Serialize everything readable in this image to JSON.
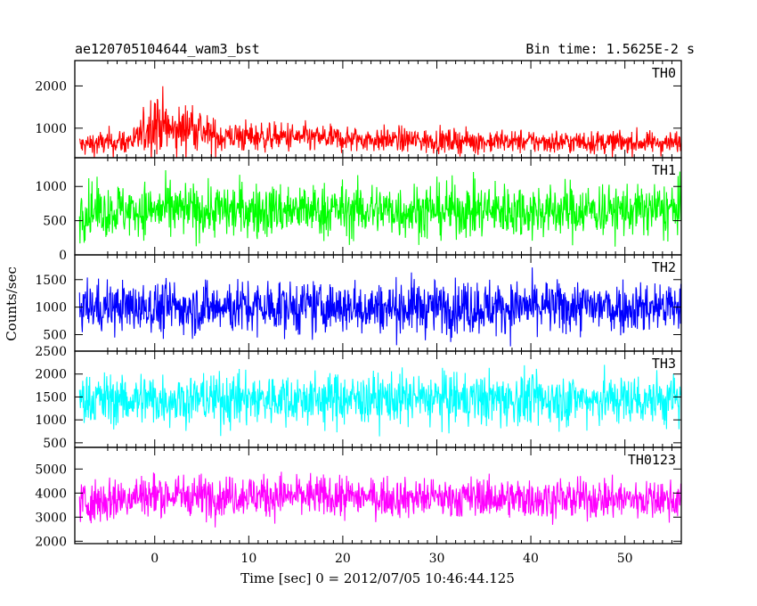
{
  "header": {
    "title": "ae120705104644_wam3_bst",
    "bin_time": "Bin time: 1.5625E-2 s"
  },
  "axes": {
    "xlabel": "Time [sec] 0 = 2012/07/05 10:46:44.125",
    "ylabel": "Counts/sec"
  },
  "chart_data": {
    "type": "line",
    "x_range": [
      -8.5,
      56
    ],
    "x_data_range": [
      -8,
      56
    ],
    "xticks": [
      0,
      10,
      20,
      30,
      40,
      50
    ],
    "xtick_labels": [
      "0",
      "10",
      "20",
      "30",
      "40",
      "50"
    ],
    "panels": [
      {
        "name": "TH0",
        "color": "#ff0000",
        "ylim": [
          300,
          2600
        ],
        "yticks": [
          1000,
          2000
        ],
        "ytick_labels": [
          "1000",
          "2000"
        ],
        "envelope": [
          {
            "t": -8,
            "base": 600,
            "amp": 300
          },
          {
            "t": -2,
            "base": 700,
            "amp": 400
          },
          {
            "t": 0,
            "base": 1200,
            "amp": 900
          },
          {
            "t": 2,
            "base": 900,
            "amp": 700
          },
          {
            "t": 4,
            "base": 1100,
            "amp": 700
          },
          {
            "t": 6,
            "base": 800,
            "amp": 500
          },
          {
            "t": 10,
            "base": 800,
            "amp": 400
          },
          {
            "t": 20,
            "base": 750,
            "amp": 350
          },
          {
            "t": 30,
            "base": 700,
            "amp": 330
          },
          {
            "t": 56,
            "base": 650,
            "amp": 300
          }
        ]
      },
      {
        "name": "TH1",
        "color": "#00ff00",
        "ylim": [
          0,
          1420
        ],
        "yticks": [
          0,
          500,
          1000
        ],
        "ytick_labels": [
          "0",
          "500",
          "1000"
        ],
        "envelope": [
          {
            "t": -8,
            "base": 650,
            "amp": 450
          },
          {
            "t": 56,
            "base": 650,
            "amp": 450
          }
        ]
      },
      {
        "name": "TH2",
        "color": "#0000ff",
        "ylim": [
          200,
          1950
        ],
        "yticks": [
          500,
          1000,
          1500
        ],
        "ytick_labels": [
          "500",
          "1000",
          "1500"
        ],
        "envelope": [
          {
            "t": -8,
            "base": 1000,
            "amp": 550
          },
          {
            "t": 56,
            "base": 1000,
            "amp": 550
          }
        ]
      },
      {
        "name": "TH3",
        "color": "#00ffff",
        "ylim": [
          400,
          2500
        ],
        "yticks": [
          500,
          1000,
          1500,
          2000,
          2500
        ],
        "ytick_labels": [
          "500",
          "1000",
          "1500",
          "2000",
          "2500"
        ],
        "envelope": [
          {
            "t": -8,
            "base": 1450,
            "amp": 650
          },
          {
            "t": 56,
            "base": 1450,
            "amp": 650
          }
        ]
      },
      {
        "name": "TH0123",
        "color": "#ff00ff",
        "ylim": [
          1900,
          5900
        ],
        "yticks": [
          2000,
          3000,
          4000,
          5000
        ],
        "ytick_labels": [
          "2000",
          "3000",
          "4000",
          "5000"
        ],
        "envelope": [
          {
            "t": -8,
            "base": 3600,
            "amp": 1000
          },
          {
            "t": -1,
            "base": 3900,
            "amp": 1100
          },
          {
            "t": 2,
            "base": 3900,
            "amp": 1000
          },
          {
            "t": 8,
            "base": 3900,
            "amp": 1000
          },
          {
            "t": 30,
            "base": 3800,
            "amp": 950
          },
          {
            "t": 56,
            "base": 3750,
            "amp": 950
          }
        ]
      }
    ]
  }
}
